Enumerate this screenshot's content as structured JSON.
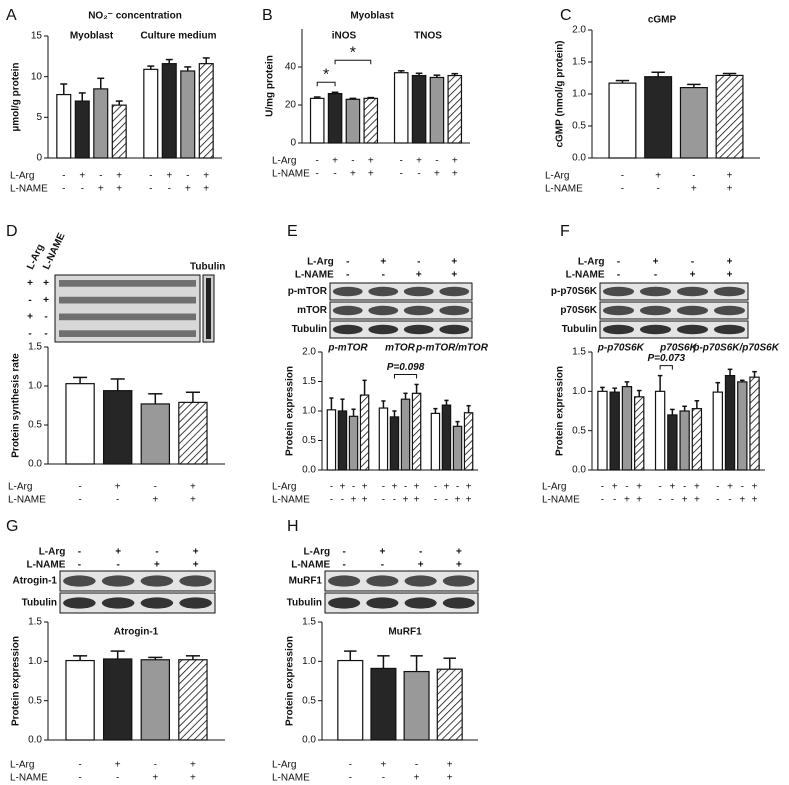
{
  "chart_data": [
    {
      "panel": "A",
      "type": "bar",
      "title": "NO₂⁻ concentration",
      "ylabel": "µmol/g protein",
      "ylim": [
        0,
        15
      ],
      "yticks": [
        0,
        5,
        10,
        15
      ],
      "groups": [
        "Myoblast",
        "Culture medium"
      ],
      "series": [
        {
          "color": "#ffffff",
          "values": [
            7.8,
            10.9
          ],
          "errors": [
            1.3,
            0.4
          ]
        },
        {
          "color": "#262626",
          "values": [
            7.0,
            11.6
          ],
          "errors": [
            1.0,
            0.5
          ]
        },
        {
          "color": "#999999",
          "values": [
            8.5,
            10.7
          ],
          "errors": [
            1.3,
            0.5
          ]
        },
        {
          "color": "#ffffff",
          "hatch": true,
          "values": [
            6.5,
            11.6
          ],
          "errors": [
            0.5,
            0.7
          ]
        }
      ],
      "treatments": [
        {
          "name": "L-Arg",
          "signs": [
            "-",
            "+",
            "-",
            "+"
          ]
        },
        {
          "name": "L-NAME",
          "signs": [
            "-",
            "-",
            "+",
            "+"
          ]
        }
      ]
    },
    {
      "panel": "B",
      "type": "bar",
      "title": "Myoblast",
      "ylabel": "U/mg protein",
      "ylim": [
        0,
        60
      ],
      "yticks": [
        0,
        20,
        40
      ],
      "groups": [
        "iNOS",
        "TNOS"
      ],
      "series": [
        {
          "color": "#ffffff",
          "values": [
            23.5,
            37
          ],
          "errors": [
            0.7,
            1.0
          ]
        },
        {
          "color": "#262626",
          "values": [
            26,
            35.5
          ],
          "errors": [
            0.7,
            1.2
          ]
        },
        {
          "color": "#999999",
          "values": [
            23,
            34.5
          ],
          "errors": [
            0.5,
            1.2
          ]
        },
        {
          "color": "#ffffff",
          "hatch": true,
          "values": [
            23.5,
            35.5
          ],
          "errors": [
            0.4,
            1.0
          ]
        }
      ],
      "brackets": [
        {
          "label": "*",
          "group": 0,
          "bars": [
            0,
            1
          ]
        },
        {
          "label": "*",
          "group": 0,
          "bars": [
            1,
            3
          ]
        }
      ],
      "treatments": [
        {
          "name": "L-Arg",
          "signs": [
            "-",
            "+",
            "-",
            "+"
          ]
        },
        {
          "name": "L-NAME",
          "signs": [
            "-",
            "-",
            "+",
            "+"
          ]
        }
      ]
    },
    {
      "panel": "C",
      "type": "bar",
      "title": "cGMP",
      "ylabel": "cGMP (nmol/g protein)",
      "ylim": [
        0,
        2
      ],
      "yticks": [
        {
          "value": 0,
          "label": "0.0"
        },
        0.5,
        {
          "value": 1,
          "label": "1.0"
        },
        1.5,
        {
          "value": 2,
          "label": "2.0"
        }
      ],
      "series": [
        {
          "color": "#ffffff",
          "values": [
            1.17
          ],
          "errors": [
            0.04
          ]
        },
        {
          "color": "#262626",
          "values": [
            1.27
          ],
          "errors": [
            0.07
          ]
        },
        {
          "color": "#999999",
          "values": [
            1.1
          ],
          "errors": [
            0.05
          ]
        },
        {
          "color": "#ffffff",
          "hatch": true,
          "values": [
            1.29
          ],
          "errors": [
            0.03
          ]
        }
      ],
      "treatments": [
        {
          "name": "L-Arg",
          "signs": [
            "-",
            "+",
            "-",
            "+"
          ]
        },
        {
          "name": "L-NAME",
          "signs": [
            "-",
            "-",
            "+",
            "+"
          ]
        }
      ]
    },
    {
      "panel": "D",
      "type": "bar",
      "ylabel": "Protein synthesis rate",
      "ylim": [
        0,
        1.5
      ],
      "yticks": [
        {
          "value": 0,
          "label": "0.0"
        },
        0.5,
        {
          "value": 1,
          "label": "1.0"
        },
        1.5
      ],
      "blot": {
        "bands": [
          "Tubulin"
        ],
        "treatments": [
          {
            "name": "L-Arg",
            "signs": [
              "+",
              "-",
              "+",
              "-"
            ]
          },
          {
            "name": "L-NAME",
            "signs": [
              "+",
              "+",
              "-",
              "-"
            ]
          }
        ]
      },
      "series": [
        {
          "color": "#ffffff",
          "values": [
            1.03
          ],
          "errors": [
            0.08
          ]
        },
        {
          "color": "#262626",
          "values": [
            0.94
          ],
          "errors": [
            0.15
          ]
        },
        {
          "color": "#999999",
          "values": [
            0.77
          ],
          "errors": [
            0.13
          ]
        },
        {
          "color": "#ffffff",
          "hatch": true,
          "values": [
            0.79
          ],
          "errors": [
            0.13
          ]
        }
      ],
      "treatments": [
        {
          "name": "L-Arg",
          "signs": [
            "-",
            "+",
            "-",
            "+"
          ]
        },
        {
          "name": "L-NAME",
          "signs": [
            "-",
            "-",
            "+",
            "+"
          ]
        }
      ]
    },
    {
      "panel": "E",
      "type": "bar",
      "ylabel": "Protein expression",
      "ylim": [
        0,
        2
      ],
      "yticks": [
        {
          "value": 0,
          "label": "0.0"
        },
        0.5,
        {
          "value": 1,
          "label": "1.0"
        },
        1.5,
        {
          "value": 2,
          "label": "2.0"
        }
      ],
      "blot": {
        "bands": [
          "p-mTOR",
          "mTOR",
          "Tubulin"
        ]
      },
      "groups": [
        "p-mTOR",
        "mTOR",
        "p-mTOR/mTOR"
      ],
      "series": [
        {
          "color": "#ffffff",
          "values": [
            1.02,
            1.05,
            0.96
          ],
          "errors": [
            0.2,
            0.12,
            0.08
          ]
        },
        {
          "color": "#262626",
          "values": [
            1.0,
            0.9,
            1.1
          ],
          "errors": [
            0.2,
            0.1,
            0.08
          ]
        },
        {
          "color": "#999999",
          "values": [
            0.91,
            1.2,
            0.74
          ],
          "errors": [
            0.12,
            0.1,
            0.08
          ]
        },
        {
          "color": "#ffffff",
          "hatch": true,
          "values": [
            1.27,
            1.3,
            0.97
          ],
          "errors": [
            0.25,
            0.15,
            0.12
          ]
        }
      ],
      "brackets": [
        {
          "label": "P=0.098",
          "group": 1,
          "bars": [
            1,
            3
          ]
        }
      ],
      "treatments": [
        {
          "name": "L-Arg",
          "signs": [
            "-",
            "+",
            "-",
            "+"
          ]
        },
        {
          "name": "L-NAME",
          "signs": [
            "-",
            "-",
            "+",
            "+"
          ]
        }
      ]
    },
    {
      "panel": "F",
      "type": "bar",
      "ylabel": "Protein expression",
      "ylim": [
        0,
        1.5
      ],
      "yticks": [
        {
          "value": 0,
          "label": "0.0"
        },
        0.5,
        {
          "value": 1,
          "label": "1.0"
        },
        1.5
      ],
      "blot": {
        "bands": [
          "p-p70S6K",
          "p70S6K",
          "Tubulin"
        ]
      },
      "groups": [
        "p-p70S6K",
        "p70S6K",
        "p-p70S6K/p70S6K"
      ],
      "series": [
        {
          "color": "#ffffff",
          "values": [
            1.0,
            1.0,
            0.99
          ],
          "errors": [
            0.05,
            0.2,
            0.12
          ]
        },
        {
          "color": "#262626",
          "values": [
            0.99,
            0.7,
            1.2
          ],
          "errors": [
            0.05,
            0.07,
            0.08
          ]
        },
        {
          "color": "#999999",
          "values": [
            1.06,
            0.75,
            1.12
          ],
          "errors": [
            0.06,
            0.06,
            0.02
          ]
        },
        {
          "color": "#ffffff",
          "hatch": true,
          "values": [
            0.93,
            0.78,
            1.18
          ],
          "errors": [
            0.08,
            0.1,
            0.07
          ]
        }
      ],
      "brackets": [
        {
          "label": "P=0.073",
          "group": 1,
          "bars": [
            0,
            1
          ]
        }
      ],
      "treatments": [
        {
          "name": "L-Arg",
          "signs": [
            "-",
            "+",
            "-",
            "+"
          ]
        },
        {
          "name": "L-NAME",
          "signs": [
            "-",
            "-",
            "+",
            "+"
          ]
        }
      ]
    },
    {
      "panel": "G",
      "type": "bar",
      "title": "Atrogin-1",
      "ylabel": "Protein expression",
      "ylim": [
        0,
        1.5
      ],
      "yticks": [
        {
          "value": 0,
          "label": "0.0"
        },
        0.5,
        {
          "value": 1,
          "label": "1.0"
        },
        1.5
      ],
      "blot": {
        "bands": [
          "Atrogin-1",
          "Tubulin"
        ]
      },
      "series": [
        {
          "color": "#ffffff",
          "values": [
            1.01
          ],
          "errors": [
            0.06
          ]
        },
        {
          "color": "#262626",
          "values": [
            1.03
          ],
          "errors": [
            0.1
          ]
        },
        {
          "color": "#999999",
          "values": [
            1.02
          ],
          "errors": [
            0.03
          ]
        },
        {
          "color": "#ffffff",
          "hatch": true,
          "values": [
            1.02
          ],
          "errors": [
            0.05
          ]
        }
      ],
      "treatments": [
        {
          "name": "L-Arg",
          "signs": [
            "-",
            "+",
            "-",
            "+"
          ]
        },
        {
          "name": "L-NAME",
          "signs": [
            "-",
            "-",
            "+",
            "+"
          ]
        }
      ]
    },
    {
      "panel": "H",
      "type": "bar",
      "title": "MuRF1",
      "ylabel": "Protein expression",
      "ylim": [
        0,
        1.5
      ],
      "yticks": [
        {
          "value": 0,
          "label": "0.0"
        },
        0.5,
        {
          "value": 1,
          "label": "1.0"
        },
        1.5
      ],
      "blot": {
        "bands": [
          "MuRF1",
          "Tubulin"
        ]
      },
      "series": [
        {
          "color": "#ffffff",
          "values": [
            1.01
          ],
          "errors": [
            0.12
          ]
        },
        {
          "color": "#262626",
          "values": [
            0.91
          ],
          "errors": [
            0.16
          ]
        },
        {
          "color": "#999999",
          "values": [
            0.87
          ],
          "errors": [
            0.2
          ]
        },
        {
          "color": "#ffffff",
          "hatch": true,
          "values": [
            0.9
          ],
          "errors": [
            0.14
          ]
        }
      ],
      "treatments": [
        {
          "name": "L-Arg",
          "signs": [
            "-",
            "+",
            "-",
            "+"
          ]
        },
        {
          "name": "L-NAME",
          "signs": [
            "-",
            "-",
            "+",
            "+"
          ]
        }
      ]
    }
  ]
}
